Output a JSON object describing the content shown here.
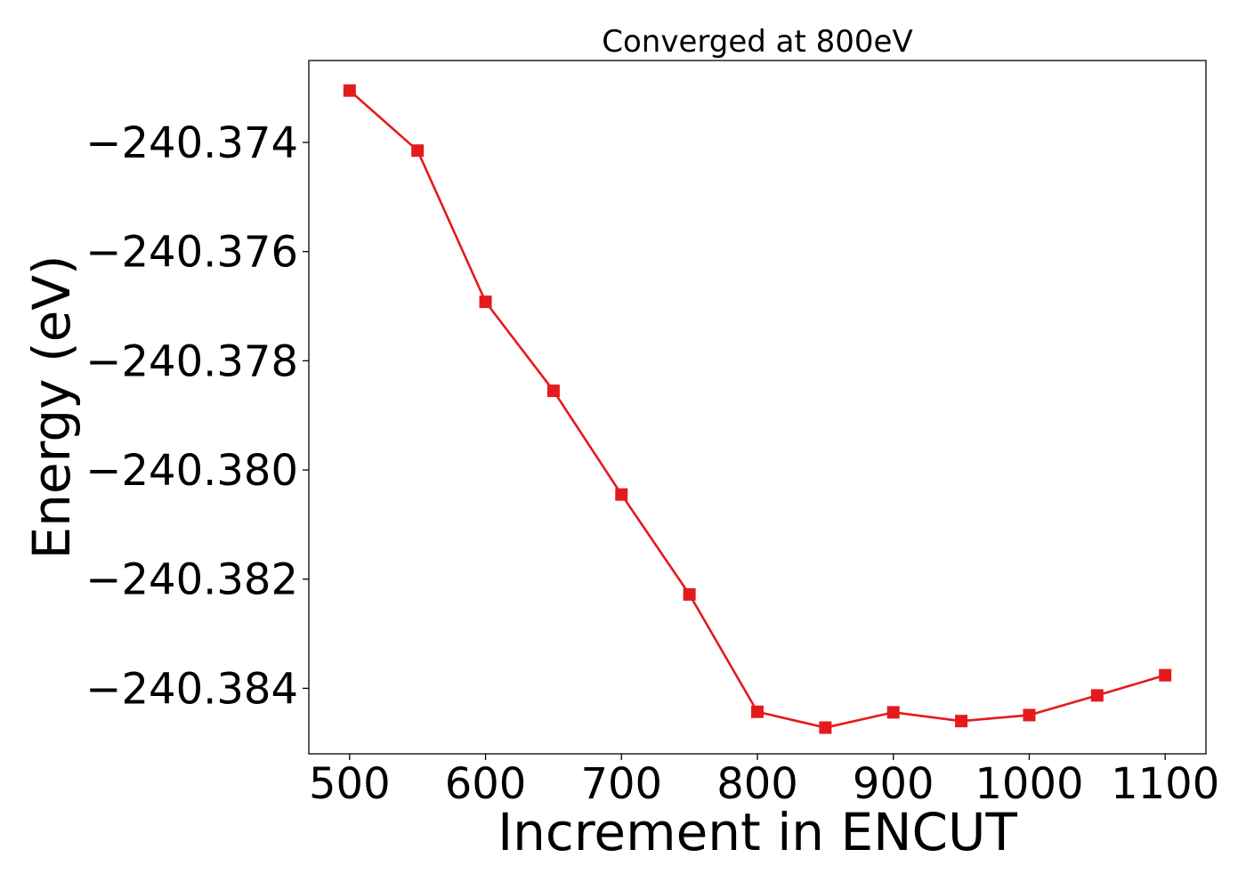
{
  "chart_data": {
    "type": "line",
    "title": "Converged at 800eV",
    "xlabel": "Increment in ENCUT",
    "ylabel": "Energy (eV)",
    "x": [
      500,
      550,
      600,
      650,
      700,
      750,
      800,
      850,
      900,
      950,
      1000,
      1050,
      1100
    ],
    "series": [
      {
        "values": [
          -240.37305,
          -240.37415,
          -240.37692,
          -240.37855,
          -240.38045,
          -240.38228,
          -240.38443,
          -240.38472,
          -240.38444,
          -240.3846,
          -240.38449,
          -240.38413,
          -240.38376
        ],
        "color": "#e41a1c",
        "marker": "square"
      }
    ],
    "xticks": [
      500,
      600,
      700,
      800,
      900,
      1000,
      1100
    ],
    "xtick_labels": [
      "500",
      "600",
      "700",
      "800",
      "900",
      "1000",
      "1100"
    ],
    "yticks": [
      -240.374,
      -240.376,
      -240.378,
      -240.38,
      -240.382,
      -240.384
    ],
    "ytick_labels": [
      "−240.374",
      "−240.376",
      "−240.378",
      "−240.380",
      "−240.382",
      "−240.384"
    ],
    "xlim": [
      470,
      1130
    ],
    "ylim": [
      -240.3852,
      -240.3725
    ],
    "grid": false,
    "legend": "none"
  }
}
